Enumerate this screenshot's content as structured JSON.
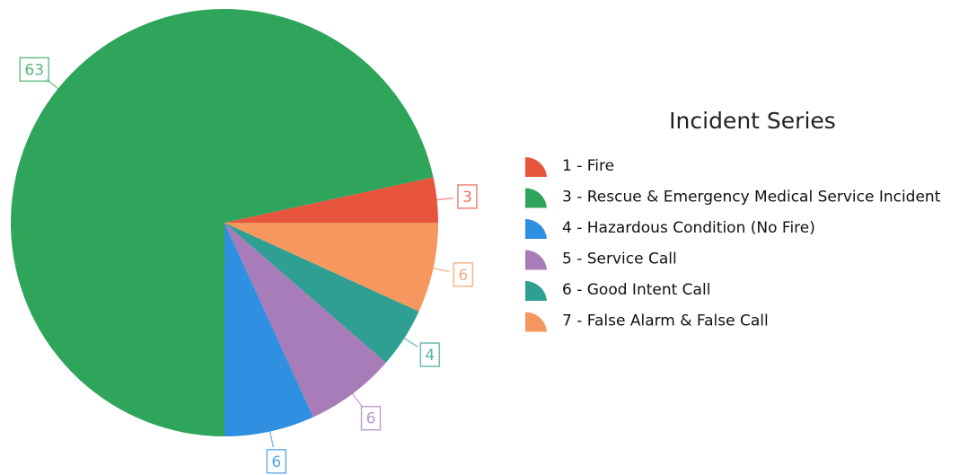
{
  "chart_data": {
    "type": "pie",
    "legend_title": "Incident Series",
    "categories": [
      "1 - Fire",
      "3 - Rescue & Emergency Medical Service Incident",
      "4 - Hazardous Condition (No Fire)",
      "5 - Service Call",
      "6 - Good Intent Call",
      "7 - False Alarm & False Call"
    ],
    "values": [
      3,
      63,
      6,
      6,
      4,
      6
    ],
    "colors": [
      "#e8553f",
      "#2ea55a",
      "#2f8fe0",
      "#a87cb9",
      "#2e9f92",
      "#f5975f"
    ],
    "legend": "right"
  }
}
